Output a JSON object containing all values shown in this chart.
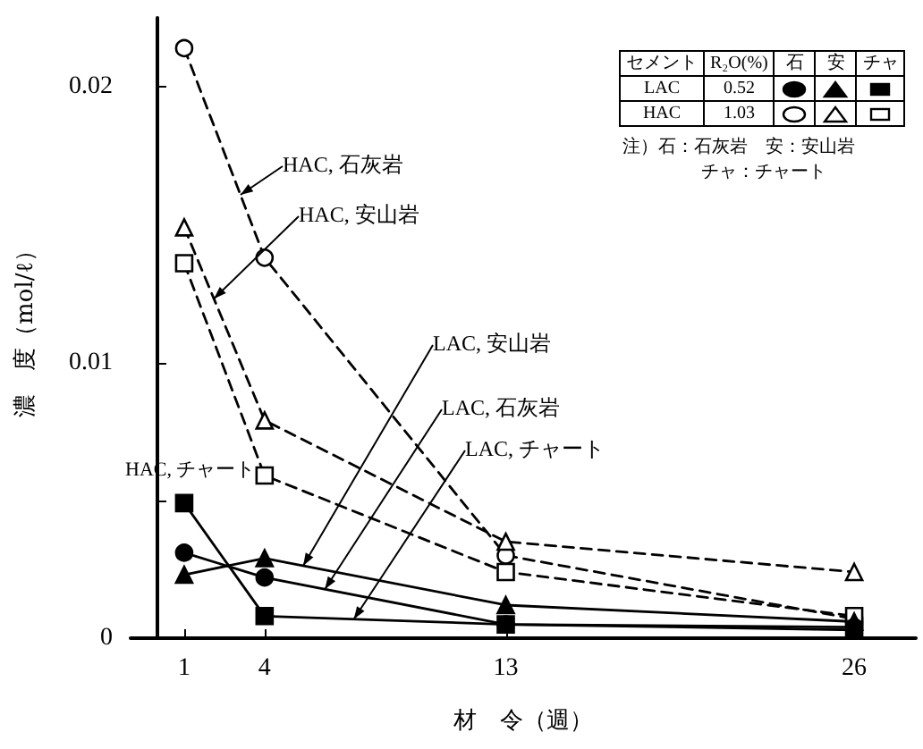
{
  "chart_data": {
    "type": "line",
    "xlabel": "材　令（週）",
    "ylabel": "濃　度（mol/ℓ）",
    "x": [
      1,
      4,
      13,
      26
    ],
    "xlim": [
      -1,
      28.3
    ],
    "xticks": [
      1,
      4,
      13,
      26
    ],
    "ylim": [
      0,
      0.0225
    ],
    "yticks": [
      0,
      {
        "value": 0.005,
        "label": null
      },
      0.01,
      0.02
    ],
    "series": [
      {
        "name": "LAC, 石灰岩",
        "color": "#000000",
        "marker": "circle",
        "line_style": "solid",
        "values": [
          0.0031,
          0.0022,
          0.0005,
          0.0004
        ]
      },
      {
        "name": "LAC, 安山岩",
        "color": "#000000",
        "marker": "triangle",
        "line_style": "solid",
        "values": [
          0.0023,
          0.0029,
          0.0012,
          0.0006
        ]
      },
      {
        "name": "LAC, チャート",
        "color": "#000000",
        "marker": "square",
        "line_style": "solid",
        "values": [
          0.0049,
          0.0008,
          0.0005,
          0.0003
        ]
      },
      {
        "name": "HAC, 石灰岩",
        "color": "#000000",
        "marker": "circle",
        "line_style": "dashed",
        "values": [
          0.0214,
          0.0138,
          0.003,
          0.0007
        ]
      },
      {
        "name": "HAC, 安山岩",
        "color": "#000000",
        "marker": "triangle",
        "line_style": "dashed",
        "values": [
          0.0149,
          0.0079,
          0.0035,
          0.0024
        ]
      },
      {
        "name": "HAC, チャート",
        "color": "#000000",
        "marker": "square",
        "line_style": "dashed",
        "values": [
          0.0136,
          0.0059,
          0.0024,
          0.0008
        ]
      }
    ],
    "annotations": [
      "セメント",
      "R₂O(%)",
      "石",
      "安",
      "チャ",
      "LAC",
      "0.52",
      "HAC",
      "1.03",
      "注）石：石灰岩　安：安山岩",
      "チャ：チャート"
    ]
  }
}
